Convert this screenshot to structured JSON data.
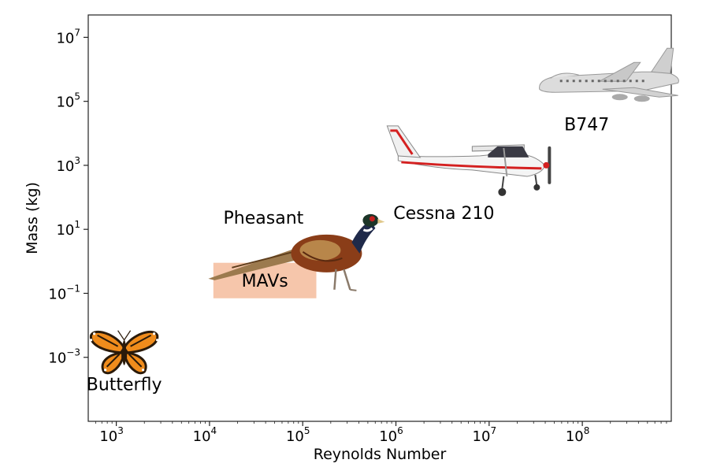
{
  "chart_data": {
    "type": "scatter",
    "title": "",
    "xlabel": "Reynolds Number",
    "ylabel": "Mass (kg)",
    "x_scale": "log",
    "y_scale": "log",
    "xlim": [
      500,
      900000000
    ],
    "ylim": [
      1e-05,
      50000000
    ],
    "grid": false,
    "x_ticks": [
      {
        "value": 1000,
        "base": "10",
        "exp": "3"
      },
      {
        "value": 10000,
        "base": "10",
        "exp": "4"
      },
      {
        "value": 100000,
        "base": "10",
        "exp": "5"
      },
      {
        "value": 1000000,
        "base": "10",
        "exp": "6"
      },
      {
        "value": 10000000,
        "base": "10",
        "exp": "7"
      },
      {
        "value": 100000000,
        "base": "10",
        "exp": "8"
      }
    ],
    "y_ticks": [
      {
        "value": 0.001,
        "base": "10",
        "exp": "−3"
      },
      {
        "value": 0.1,
        "base": "10",
        "exp": "−1"
      },
      {
        "value": 10,
        "base": "10",
        "exp": "1"
      },
      {
        "value": 1000,
        "base": "10",
        "exp": "3"
      },
      {
        "value": 100000,
        "base": "10",
        "exp": "5"
      },
      {
        "value": 10000000,
        "base": "10",
        "exp": "7"
      }
    ],
    "points": [
      {
        "label": "Butterfly",
        "x": 1000,
        "y": 0.001,
        "icon": "butterfly-icon"
      },
      {
        "label": "Pheasant",
        "x": 180000,
        "y": 1,
        "icon": "pheasant-icon"
      },
      {
        "label": "Cessna 210",
        "x": 8000000,
        "y": 1000,
        "icon": "cessna-icon"
      },
      {
        "label": "B747",
        "x": 200000000,
        "y": 300000,
        "icon": "b747-icon"
      }
    ],
    "region": {
      "label": "MAVs",
      "x_range": [
        11000,
        140000
      ],
      "y_range": [
        0.07,
        0.9
      ],
      "color": "#f6c6ab"
    }
  }
}
